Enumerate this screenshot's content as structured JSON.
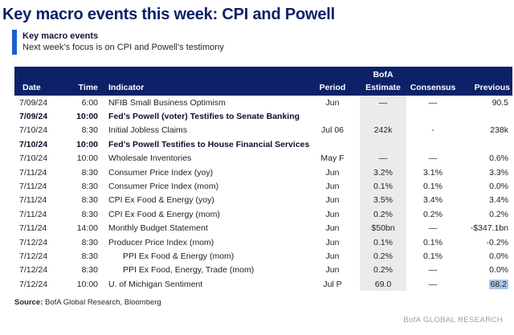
{
  "page": {
    "title": "Key macro events this week: CPI and Powell",
    "exhibit_heading": "Key macro events",
    "exhibit_subtitle": "Next week’s focus is on CPI and Powell’s testimony",
    "source_label": "Source:",
    "source_text": " BofA Global Research, Bloomberg",
    "footer_brand": "BofA GLOBAL RESEARCH"
  },
  "colors": {
    "navy": "#0c2168",
    "accent_blue": "#1760d2",
    "estimate_column_bg": "#ebebeb",
    "highlight_bg": "#a9c7e8",
    "footer_gray": "#999da3"
  },
  "table": {
    "header": {
      "bofa_label": "BofA",
      "cols": [
        "Date",
        "Time",
        "Indicator",
        "Period",
        "Estimate",
        "Consensus",
        "Previous"
      ]
    },
    "rows": [
      {
        "date": "7/09/24",
        "time": "6:00",
        "indicator": "NFIB Small Business Optimism",
        "period": "Jun",
        "estimate": "—",
        "consensus": "—",
        "previous": "90.5",
        "bold": false,
        "indent": false,
        "highlight_previous": false
      },
      {
        "date": "7/09/24",
        "time": "10:00",
        "indicator": "Fed’s Powell (voter) Testifies to Senate Banking",
        "period": "",
        "estimate": "",
        "consensus": "",
        "previous": "",
        "bold": true,
        "indent": false,
        "highlight_previous": false
      },
      {
        "date": "7/10/24",
        "time": "8:30",
        "indicator": "Initial Jobless Claims",
        "period": "Jul 06",
        "estimate": "242k",
        "consensus": "-",
        "previous": "238k",
        "bold": false,
        "indent": false,
        "highlight_previous": false
      },
      {
        "date": "7/10/24",
        "time": "10:00",
        "indicator": "Fed’s Powell Testifies to House Financial Services",
        "period": "",
        "estimate": "",
        "consensus": "",
        "previous": "",
        "bold": true,
        "indent": false,
        "highlight_previous": false
      },
      {
        "date": "7/10/24",
        "time": "10:00",
        "indicator": "Wholesale Inventories",
        "period": "May F",
        "estimate": "—",
        "consensus": "—",
        "previous": "0.6%",
        "bold": false,
        "indent": false,
        "highlight_previous": false
      },
      {
        "date": "7/11/24",
        "time": "8:30",
        "indicator": "Consumer Price Index (yoy)",
        "period": "Jun",
        "estimate": "3.2%",
        "consensus": "3.1%",
        "previous": "3.3%",
        "bold": false,
        "indent": false,
        "highlight_previous": false
      },
      {
        "date": "7/11/24",
        "time": "8:30",
        "indicator": "Consumer Price Index (mom)",
        "period": "Jun",
        "estimate": "0.1%",
        "consensus": "0.1%",
        "previous": "0.0%",
        "bold": false,
        "indent": false,
        "highlight_previous": false
      },
      {
        "date": "7/11/24",
        "time": "8:30",
        "indicator": "CPI Ex Food & Energy (yoy)",
        "period": "Jun",
        "estimate": "3.5%",
        "consensus": "3.4%",
        "previous": "3.4%",
        "bold": false,
        "indent": false,
        "highlight_previous": false
      },
      {
        "date": "7/11/24",
        "time": "8:30",
        "indicator": "CPI Ex Food & Energy (mom)",
        "period": "Jun",
        "estimate": "0.2%",
        "consensus": "0.2%",
        "previous": "0.2%",
        "bold": false,
        "indent": false,
        "highlight_previous": false
      },
      {
        "date": "7/11/24",
        "time": "14:00",
        "indicator": "Monthly Budget Statement",
        "period": "Jun",
        "estimate": "$50bn",
        "consensus": "—",
        "previous": "-$347.1bn",
        "bold": false,
        "indent": false,
        "highlight_previous": false
      },
      {
        "date": "7/12/24",
        "time": "8:30",
        "indicator": "Producer Price Index (mom)",
        "period": "Jun",
        "estimate": "0.1%",
        "consensus": "0.1%",
        "previous": "-0.2%",
        "bold": false,
        "indent": false,
        "highlight_previous": false
      },
      {
        "date": "7/12/24",
        "time": "8:30",
        "indicator": "PPI Ex Food & Energy (mom)",
        "period": "Jun",
        "estimate": "0.2%",
        "consensus": "0.1%",
        "previous": "0.0%",
        "bold": false,
        "indent": true,
        "highlight_previous": false
      },
      {
        "date": "7/12/24",
        "time": "8:30",
        "indicator": "PPI Ex Food, Energy, Trade (mom)",
        "period": "Jun",
        "estimate": "0.2%",
        "consensus": "—",
        "previous": "0.0%",
        "bold": false,
        "indent": true,
        "highlight_previous": false
      },
      {
        "date": "7/12/24",
        "time": "10:00",
        "indicator": "U. of Michigan Sentiment",
        "period": "Jul P",
        "estimate": "69.0",
        "consensus": "—",
        "previous": "68.2",
        "bold": false,
        "indent": false,
        "highlight_previous": true
      }
    ]
  }
}
